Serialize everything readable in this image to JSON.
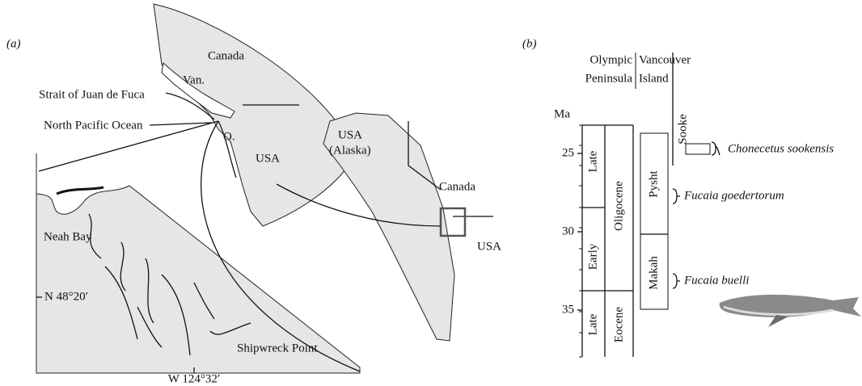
{
  "panel_a": {
    "label": "(a)",
    "region_map": {
      "canada": "Canada",
      "vancouver": "Van.",
      "strait": "Strait of Juan de Fuca",
      "ocean": "North Pacific Ocean",
      "olympic": "O.",
      "usa": "USA"
    },
    "overview_map": {
      "usa_alaska": "USA",
      "alaska": "(Alaska)",
      "canada": "Canada",
      "usa": "USA"
    },
    "inset_map": {
      "neah_bay": "Neah Bay",
      "latitude": "N 48°20′",
      "shipwreck_point": "Shipwreck Point",
      "longitude": "W 124°32′"
    }
  },
  "panel_b": {
    "label": "(b)",
    "axis_unit": "Ma",
    "ticks": [
      25,
      30,
      35
    ],
    "columns": {
      "olympic_1": "Olympic",
      "olympic_2": "Peninsula",
      "vancouver_1": "Vancouver",
      "vancouver_2": "Island"
    },
    "epochs": {
      "oligocene": "Oligocene",
      "eocene": "Eocene",
      "late_olig": "Late",
      "early_olig": "Early",
      "late_eoc": "Late"
    },
    "formations": {
      "sooke": "Sooke",
      "pysht": "Pysht",
      "makah": "Makah"
    },
    "taxa": {
      "chonecetus": "Chonecetus sookensis",
      "goedertorum": "Fucaia goedertorum",
      "buelli": "Fucaia buelli"
    }
  }
}
